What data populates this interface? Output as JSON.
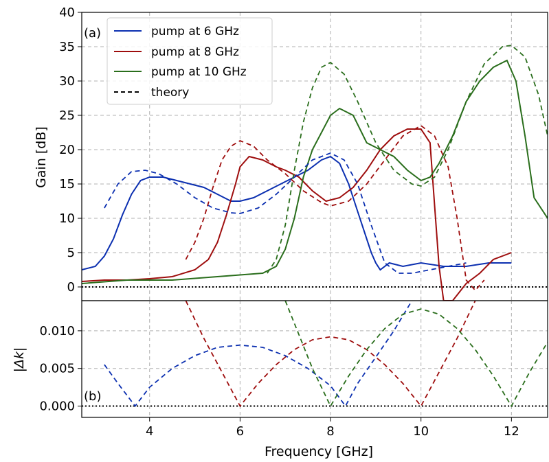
{
  "chart_data": [
    {
      "panel": "(a)",
      "type": "line",
      "ylabel": "Gain [dB]",
      "xlim": [
        2.5,
        12.8
      ],
      "ylim": [
        -2,
        40
      ],
      "xticks": [
        4,
        6,
        8,
        10,
        12
      ],
      "yticks": [
        0,
        5,
        10,
        15,
        20,
        25,
        30,
        35,
        40
      ],
      "grid": true,
      "legend_position": "top-left",
      "legend": [
        "pump at 6 GHz",
        "pump at 8 GHz",
        "pump at 10 GHz",
        "theory"
      ],
      "reference_line": {
        "y": 0,
        "style": "dotted",
        "color": "#000000"
      },
      "series": [
        {
          "name": "pump at 6 GHz",
          "color": "#0b2fb0",
          "style": "solid",
          "x": [
            2.5,
            2.8,
            3.0,
            3.2,
            3.4,
            3.6,
            3.8,
            4.0,
            4.3,
            4.6,
            4.9,
            5.2,
            5.5,
            5.8,
            6.0,
            6.3,
            6.6,
            6.9,
            7.2,
            7.5,
            7.8,
            8.0,
            8.2,
            8.4,
            8.6,
            8.8,
            8.9,
            9.0,
            9.1,
            9.3,
            9.6,
            10.0,
            10.5,
            11.0,
            11.5,
            12.0
          ],
          "y": [
            2.5,
            3.0,
            4.5,
            7.0,
            10.5,
            13.5,
            15.5,
            16.0,
            16.0,
            15.5,
            15.0,
            14.5,
            13.5,
            12.5,
            12.5,
            13.0,
            14.0,
            15.0,
            16.0,
            17.0,
            18.5,
            19.0,
            18.0,
            15.0,
            11.0,
            7.0,
            5.0,
            3.5,
            2.5,
            3.5,
            3.0,
            3.5,
            3.0,
            3.0,
            3.5,
            3.5
          ]
        },
        {
          "name": "pump at 8 GHz",
          "color": "#9e0d0d",
          "style": "solid",
          "x": [
            2.5,
            3.0,
            3.5,
            4.0,
            4.5,
            5.0,
            5.3,
            5.5,
            5.7,
            5.9,
            6.0,
            6.2,
            6.5,
            6.8,
            7.0,
            7.3,
            7.6,
            7.9,
            8.2,
            8.5,
            8.8,
            9.1,
            9.4,
            9.7,
            10.0,
            10.2,
            10.3,
            10.4,
            10.5,
            10.7,
            11.0,
            11.3,
            11.6,
            12.0
          ],
          "y": [
            0.8,
            1.0,
            1.0,
            1.2,
            1.5,
            2.5,
            4.0,
            6.5,
            10.5,
            15.0,
            17.5,
            19.0,
            18.5,
            17.5,
            17.0,
            16.0,
            14.0,
            12.5,
            13.0,
            14.5,
            17.0,
            20.0,
            22.0,
            23.0,
            23.0,
            21.0,
            12.0,
            3.0,
            -2.0,
            -2.0,
            0.5,
            2.0,
            4.0,
            5.0
          ]
        },
        {
          "name": "pump at 10 GHz",
          "color": "#2a6e1c",
          "style": "solid",
          "x": [
            2.5,
            3.5,
            4.5,
            5.5,
            6.5,
            6.8,
            7.0,
            7.2,
            7.4,
            7.6,
            7.8,
            8.0,
            8.2,
            8.5,
            8.8,
            9.1,
            9.4,
            9.7,
            10.0,
            10.2,
            10.4,
            10.7,
            11.0,
            11.3,
            11.6,
            11.9,
            12.1,
            12.3,
            12.5,
            12.8
          ],
          "y": [
            0.5,
            1.0,
            1.0,
            1.5,
            2.0,
            3.0,
            5.5,
            10.0,
            16.0,
            20.0,
            22.5,
            25.0,
            26.0,
            25.0,
            21.0,
            20.0,
            19.0,
            17.0,
            15.5,
            16.0,
            18.0,
            22.0,
            27.0,
            30.0,
            32.0,
            33.0,
            30.0,
            22.0,
            13.0,
            10.0
          ]
        },
        {
          "name": "theory",
          "color": "#0b2fb0",
          "style": "dashed",
          "x": [
            3.0,
            3.3,
            3.6,
            3.9,
            4.2,
            4.6,
            5.0,
            5.4,
            5.8,
            6.0,
            6.4,
            6.8,
            7.2,
            7.6,
            8.0,
            8.3,
            8.6,
            8.9,
            9.2,
            9.5,
            9.8,
            10.2,
            10.6,
            11.0
          ],
          "y": [
            11.5,
            15.0,
            16.8,
            17.0,
            16.5,
            15.0,
            13.0,
            11.5,
            10.8,
            10.7,
            11.5,
            13.5,
            16.0,
            18.5,
            19.5,
            18.5,
            15.0,
            9.0,
            3.5,
            2.0,
            2.0,
            2.5,
            3.0,
            3.5
          ]
        },
        {
          "name": "theory",
          "color": "#9e0d0d",
          "style": "dashed",
          "x": [
            4.8,
            5.0,
            5.2,
            5.4,
            5.6,
            5.8,
            6.0,
            6.3,
            6.6,
            7.0,
            7.4,
            7.8,
            8.0,
            8.4,
            8.8,
            9.2,
            9.6,
            10.0,
            10.3,
            10.6,
            10.8,
            11.0,
            11.2,
            11.4
          ],
          "y": [
            4.0,
            6.5,
            10.0,
            14.5,
            18.5,
            20.5,
            21.3,
            20.5,
            18.5,
            16.5,
            14.0,
            12.3,
            11.8,
            12.5,
            15.0,
            18.5,
            22.0,
            23.5,
            22.0,
            17.5,
            10.0,
            1.0,
            -0.5,
            1.0
          ]
        },
        {
          "name": "theory",
          "color": "#2a6e1c",
          "style": "dashed",
          "x": [
            6.6,
            6.8,
            7.0,
            7.2,
            7.4,
            7.6,
            7.8,
            8.0,
            8.3,
            8.6,
            9.0,
            9.4,
            9.8,
            10.0,
            10.3,
            10.6,
            11.0,
            11.4,
            11.8,
            12.0,
            12.3,
            12.6,
            12.8
          ],
          "y": [
            2.0,
            4.0,
            9.0,
            17.0,
            24.0,
            29.0,
            32.0,
            32.7,
            31.0,
            27.0,
            21.0,
            17.0,
            15.0,
            14.7,
            16.0,
            20.0,
            27.0,
            32.5,
            35.0,
            35.2,
            33.5,
            28.0,
            22.0
          ]
        }
      ]
    },
    {
      "panel": "(b)",
      "type": "line",
      "ylabel": "|Δk|",
      "xlabel": "Frequency [GHz]",
      "xlim": [
        2.5,
        12.8
      ],
      "ylim": [
        -0.0015,
        0.014
      ],
      "xticks": [
        4,
        6,
        8,
        10,
        12
      ],
      "yticks": [
        0.0,
        0.005,
        0.01
      ],
      "ytick_labels": [
        "0.000",
        "0.005",
        "0.010"
      ],
      "grid": true,
      "reference_line": {
        "y": 0,
        "style": "dotted",
        "color": "#000000"
      },
      "series": [
        {
          "color": "#0b2fb0",
          "style": "dashed",
          "x": [
            3.0,
            3.3,
            3.68,
            4.0,
            4.5,
            5.0,
            5.5,
            6.0,
            6.5,
            7.0,
            7.5,
            8.0,
            8.33,
            8.6,
            9.0,
            9.4,
            9.8
          ],
          "y": [
            0.0055,
            0.003,
            0.0,
            0.0025,
            0.005,
            0.0067,
            0.0078,
            0.0081,
            0.0078,
            0.0067,
            0.005,
            0.0027,
            0.0,
            0.003,
            0.0065,
            0.01,
            0.014
          ]
        },
        {
          "color": "#9e0d0d",
          "style": "dashed",
          "x": [
            4.8,
            5.2,
            5.6,
            6.0,
            6.4,
            6.8,
            7.2,
            7.6,
            8.0,
            8.4,
            8.8,
            9.2,
            9.6,
            10.0,
            10.4,
            10.8,
            11.2
          ],
          "y": [
            0.014,
            0.009,
            0.0045,
            0.0,
            0.003,
            0.0055,
            0.0075,
            0.0088,
            0.0092,
            0.0088,
            0.0075,
            0.0055,
            0.003,
            0.0,
            0.0045,
            0.009,
            0.014
          ]
        },
        {
          "color": "#2a6e1c",
          "style": "dashed",
          "x": [
            7.0,
            7.3,
            7.6,
            8.0,
            8.4,
            8.8,
            9.2,
            9.6,
            10.0,
            10.4,
            10.8,
            11.2,
            11.6,
            12.0,
            12.4,
            12.8
          ],
          "y": [
            0.014,
            0.0095,
            0.005,
            0.0,
            0.004,
            0.0075,
            0.0103,
            0.0122,
            0.0129,
            0.0122,
            0.0103,
            0.0075,
            0.004,
            0.0,
            0.0045,
            0.0085
          ]
        }
      ]
    }
  ]
}
